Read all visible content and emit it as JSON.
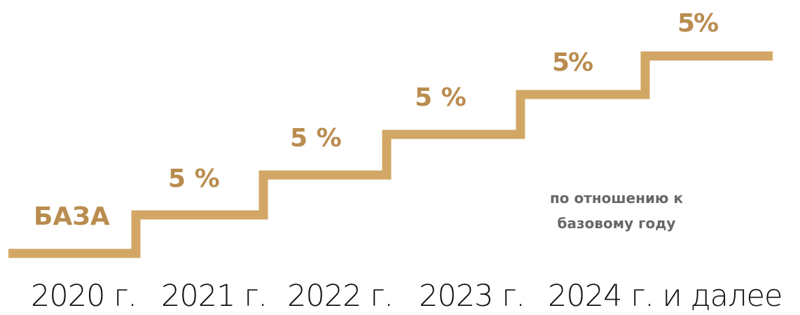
{
  "diagram": {
    "steps": [
      {
        "label": "БАЗА",
        "year": "2020 г."
      },
      {
        "label": "5 %",
        "year": "2021 г."
      },
      {
        "label": "5 %",
        "year": "2022 г."
      },
      {
        "label": "5 %",
        "year": "2023 г."
      },
      {
        "label": "5%",
        "year": "2024 г. и далее"
      },
      {
        "label": "5%"
      }
    ],
    "note": "по отношению к базовому году",
    "colors": {
      "stair": "#d2a765",
      "label": "#b98c4f",
      "note": "#666666",
      "year": "#111111"
    }
  }
}
